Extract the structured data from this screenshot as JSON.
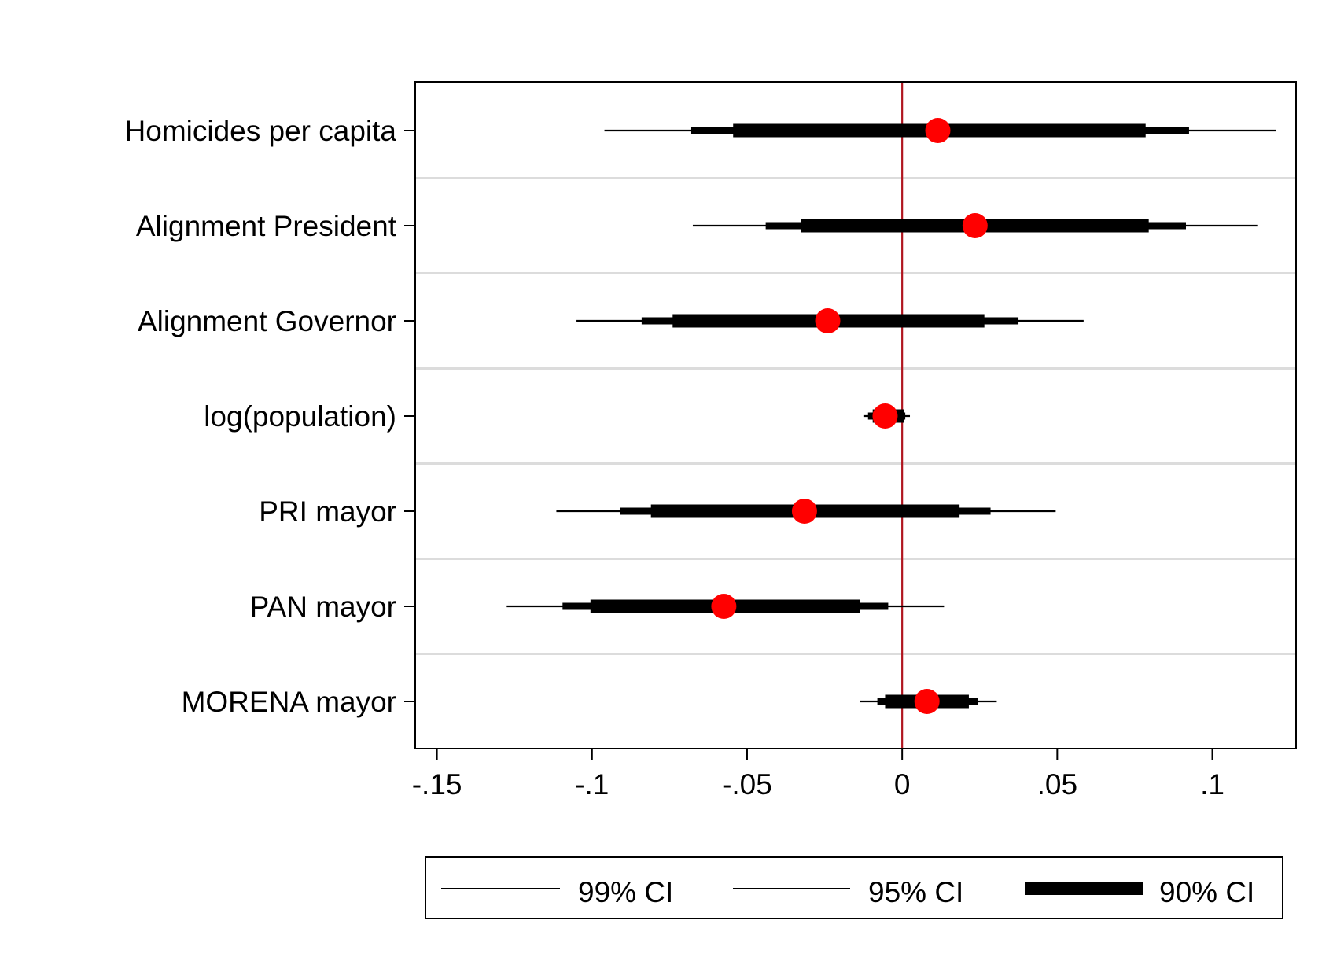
{
  "chart_data": {
    "type": "coefficient-plot",
    "orientation": "horizontal",
    "xlim": [
      -0.157,
      0.127
    ],
    "x_ticks": [
      {
        "value": -0.15,
        "label": "-.15"
      },
      {
        "value": -0.1,
        "label": "-.1"
      },
      {
        "value": -0.05,
        "label": "-.05"
      },
      {
        "value": 0,
        "label": "0"
      },
      {
        "value": 0.05,
        "label": ".05"
      },
      {
        "value": 0.1,
        "label": ".1"
      }
    ],
    "reference_line": {
      "x": 0,
      "color": "#b0151f"
    },
    "row_separators": true,
    "categories": [
      "Homicides per capita",
      "Alignment President",
      "Alignment Governor",
      "log(population)",
      "PRI mayor",
      "PAN mayor",
      "MORENA mayor"
    ],
    "estimates": [
      0.0115,
      0.0235,
      -0.024,
      -0.0055,
      -0.0315,
      -0.0575,
      0.008
    ],
    "ci99": [
      [
        -0.096,
        0.1205
      ],
      [
        -0.0675,
        0.1145
      ],
      [
        -0.105,
        0.0585
      ],
      [
        -0.0125,
        0.0025
      ],
      [
        -0.1115,
        0.0495
      ],
      [
        -0.1275,
        0.0135
      ],
      [
        -0.0135,
        0.0305
      ]
    ],
    "ci95": [
      [
        -0.068,
        0.0925
      ],
      [
        -0.044,
        0.0915
      ],
      [
        -0.084,
        0.0375
      ],
      [
        -0.011,
        0.001
      ],
      [
        -0.091,
        0.0285
      ],
      [
        -0.1095,
        -0.0045
      ],
      [
        -0.008,
        0.0245
      ]
    ],
    "ci90": [
      [
        -0.0545,
        0.0785
      ],
      [
        -0.0325,
        0.0795
      ],
      [
        -0.074,
        0.0265
      ],
      [
        -0.0095,
        0.0005
      ],
      [
        -0.081,
        0.0185
      ],
      [
        -0.1005,
        -0.0135
      ],
      [
        -0.0055,
        0.0215
      ]
    ],
    "marker_color": "#ff0000",
    "legend": {
      "position": "bottom",
      "entries": [
        {
          "label": "99% CI",
          "weight": "thin"
        },
        {
          "label": "95% CI",
          "weight": "thin"
        },
        {
          "label": "90% CI",
          "weight": "thick"
        }
      ]
    }
  }
}
